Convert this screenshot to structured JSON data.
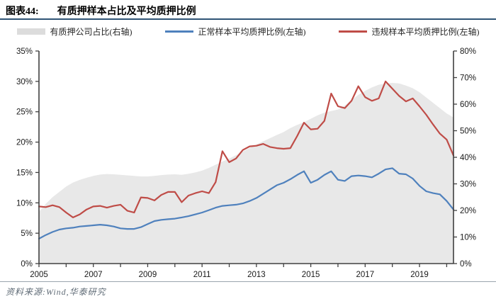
{
  "header": {
    "fig_label": "图表44:",
    "title": "有质押样本占比及平均质押比例"
  },
  "legend": [
    {
      "name": "有质押公司占比(右轴)",
      "type": "area",
      "color": "#dcdcdc"
    },
    {
      "name": "正常样本平均质押比例(左轴)",
      "type": "line",
      "color": "#4f81bd"
    },
    {
      "name": "违规样本平均质押比例(左轴)",
      "type": "line",
      "color": "#bf4c47"
    }
  ],
  "footer": {
    "source": "资料来源:Wind,华泰研究"
  },
  "colors": {
    "area_fill": "#e8e8e8",
    "blue_line": "#4f81bd",
    "red_line": "#bf4c47",
    "axis": "#404040",
    "title_rule": "#2f5476"
  },
  "chart_data": {
    "type": "line",
    "title": "有质押样本占比及平均质押比例",
    "x_axis": {
      "start_year": 2005,
      "points_per_year": 4,
      "minor_tick_years": [
        2005,
        2006,
        2007,
        2008,
        2009,
        2010,
        2011,
        2012,
        2013,
        2014,
        2015,
        2016,
        2017,
        2018,
        2019,
        2020
      ],
      "labels": [
        {
          "year": 2005,
          "text": "2005"
        },
        {
          "year": 2007,
          "text": "2007"
        },
        {
          "year": 2009,
          "text": "2009"
        },
        {
          "year": 2011,
          "text": "2011"
        },
        {
          "year": 2013,
          "text": "2013"
        },
        {
          "year": 2015,
          "text": "2015"
        },
        {
          "year": 2017,
          "text": "2017"
        },
        {
          "year": 2019,
          "text": "2019"
        }
      ]
    },
    "left_axis": {
      "min": 0,
      "max": 35,
      "step": 5,
      "ticks": [
        "0%",
        "5%",
        "10%",
        "15%",
        "20%",
        "25%",
        "30%",
        "35%"
      ]
    },
    "right_axis": {
      "min": 0,
      "max": 80,
      "step": 10,
      "ticks": [
        "0%",
        "10%",
        "20%",
        "30%",
        "40%",
        "50%",
        "60%",
        "70%",
        "80%"
      ]
    },
    "series": [
      {
        "name": "有质押公司占比(右轴)",
        "axis": "right",
        "style": "area",
        "color": "#e8e8e8",
        "values": [
          19.5,
          22.5,
          25.0,
          27.0,
          29.0,
          30.5,
          31.5,
          32.3,
          33.0,
          33.5,
          33.7,
          33.6,
          33.4,
          33.2,
          33.0,
          32.8,
          32.8,
          33.0,
          33.3,
          33.5,
          33.6,
          33.4,
          33.8,
          34.3,
          35.0,
          36.0,
          37.2,
          38.4,
          39.5,
          40.8,
          42.2,
          43.5,
          44.8,
          46.0,
          47.2,
          48.4,
          49.5,
          51.0,
          52.2,
          53.2,
          54.5,
          55.8,
          56.8,
          57.4,
          58.0,
          59.5,
          61.5,
          63.5,
          65.0,
          66.3,
          67.3,
          67.8,
          68.0,
          67.8,
          67.0,
          66.0,
          64.5,
          62.5,
          60.5,
          58.5,
          56.5,
          55.0
        ]
      },
      {
        "name": "正常样本平均质押比例(左轴)",
        "axis": "left",
        "style": "line",
        "color": "#4f81bd",
        "values": [
          4.1,
          4.7,
          5.2,
          5.6,
          5.8,
          5.9,
          6.1,
          6.2,
          6.3,
          6.4,
          6.3,
          6.1,
          5.8,
          5.7,
          5.7,
          6.0,
          6.5,
          7.0,
          7.2,
          7.3,
          7.4,
          7.6,
          7.8,
          8.1,
          8.4,
          8.8,
          9.2,
          9.5,
          9.6,
          9.7,
          9.9,
          10.3,
          10.8,
          11.5,
          12.2,
          12.9,
          13.3,
          13.9,
          14.6,
          15.2,
          13.3,
          13.8,
          14.6,
          15.2,
          13.8,
          13.6,
          14.4,
          14.5,
          14.4,
          14.2,
          14.8,
          15.5,
          15.7,
          14.8,
          14.7,
          14.0,
          12.8,
          11.9,
          11.6,
          11.4,
          10.3,
          8.9
        ]
      },
      {
        "name": "违规样本平均质押比例(左轴)",
        "axis": "left",
        "style": "line",
        "color": "#bf4c47",
        "values": [
          9.4,
          9.3,
          9.6,
          9.3,
          8.4,
          7.6,
          8.1,
          8.9,
          9.4,
          9.5,
          9.2,
          9.5,
          9.7,
          8.7,
          8.4,
          10.9,
          10.8,
          10.4,
          11.3,
          11.8,
          11.8,
          10.1,
          11.2,
          11.6,
          11.9,
          11.6,
          13.4,
          18.5,
          16.7,
          17.3,
          18.7,
          19.3,
          19.4,
          19.7,
          19.2,
          19.0,
          18.9,
          19.0,
          21.0,
          23.2,
          22.1,
          22.2,
          23.5,
          28.0,
          25.9,
          25.6,
          26.8,
          29.2,
          27.4,
          26.8,
          27.2,
          30.0,
          28.8,
          27.6,
          26.7,
          27.2,
          25.9,
          24.5,
          22.9,
          21.4,
          20.4,
          17.8
        ]
      }
    ]
  }
}
